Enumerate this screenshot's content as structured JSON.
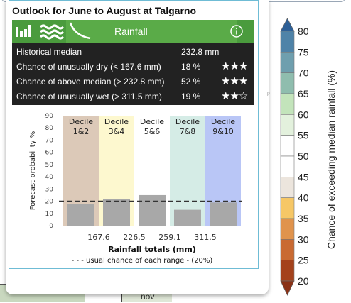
{
  "popup": {
    "title": "Outlook for June to August at Talgarno",
    "tab_label": "Rainfall",
    "stats": [
      {
        "label": "Historical median",
        "value": "232.8 mm",
        "stars": ""
      },
      {
        "label": "Chance of unusually dry (< 167.6 mm)",
        "value": "18 %",
        "stars": "★★★"
      },
      {
        "label": "Chance of above median (> 232.8 mm)",
        "value": "52 %",
        "stars": "★★★"
      },
      {
        "label": "Chance of unusually wet (> 311.5 mm)",
        "value": "19 %",
        "stars": "★★☆"
      }
    ]
  },
  "chart_data": {
    "type": "bar",
    "categories": [
      "Decile 1&2",
      "Decile 3&4",
      "Decile 5&6",
      "Decile 7&8",
      "Decile 9&10"
    ],
    "category_lines": [
      [
        "Decile",
        "1&2"
      ],
      [
        "Decile",
        "3&4"
      ],
      [
        "Decile",
        "5&6"
      ],
      [
        "Decile",
        "7&8"
      ],
      [
        "Decile",
        "9&10"
      ]
    ],
    "values": [
      18,
      22,
      25,
      13,
      19
    ],
    "band_colors": [
      "#dcc9b8",
      "#fdf8cf",
      "#ffffff",
      "#d5ece6",
      "#b9c6f6"
    ],
    "bar_color": "#a8a8a8",
    "ylabel": "Forecast probability %",
    "xlabel": "Rainfall totals (mm)",
    "yticks": [
      0,
      10,
      20,
      30,
      40,
      50,
      60,
      70,
      80,
      90
    ],
    "ylim": [
      0,
      90
    ],
    "boundaries": [
      "167.6",
      "226.5",
      "259.1",
      "311.5"
    ],
    "reference_value": 20,
    "reference_label": "- - - usual chance of each range - (20%)"
  },
  "colorbar": {
    "title": "Chance of exceeding median rainfall (%)",
    "ticks": [
      "80",
      "75",
      "70",
      "65",
      "60",
      "55",
      "50",
      "45",
      "40",
      "35",
      "30",
      "25",
      "20"
    ],
    "colors": [
      "#2d5f96",
      "#4f83a8",
      "#6f9fae",
      "#8fbdae",
      "#c3e4bb",
      "#e3f1dd",
      "#ffffff",
      "#ffffff",
      "#ece5dd",
      "#f6c766",
      "#e0934c",
      "#c96a32",
      "#a4421c",
      "#8a3217"
    ]
  }
}
